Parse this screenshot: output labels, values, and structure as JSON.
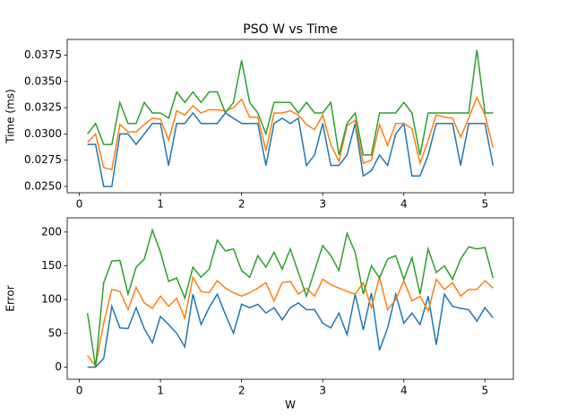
{
  "chart_data": [
    {
      "type": "line",
      "title": "PSO W vs Time",
      "y_label": "Time (ms)",
      "x": [
        0.1,
        0.2,
        0.3,
        0.4,
        0.5,
        0.6,
        0.7,
        0.8,
        0.9,
        1.0,
        1.1,
        1.2,
        1.3,
        1.4,
        1.5,
        1.6,
        1.7,
        1.8,
        1.9,
        2.0,
        2.1,
        2.2,
        2.3,
        2.4,
        2.5,
        2.6,
        2.7,
        2.8,
        2.9,
        3.0,
        3.1,
        3.2,
        3.3,
        3.4,
        3.5,
        3.6,
        3.7,
        3.8,
        3.9,
        4.0,
        4.1,
        4.2,
        4.3,
        4.4,
        4.5,
        4.6,
        4.7,
        4.8,
        4.9,
        5.0,
        5.1
      ],
      "series": [
        {
          "color": "#1f77b4",
          "values": [
            0.029,
            0.029,
            0.025,
            0.025,
            0.03,
            0.03,
            0.029,
            0.03,
            0.031,
            0.031,
            0.027,
            0.031,
            0.031,
            0.032,
            0.031,
            0.031,
            0.031,
            0.032,
            0.0315,
            0.031,
            0.031,
            0.031,
            0.027,
            0.031,
            0.0315,
            0.031,
            0.0315,
            0.027,
            0.028,
            0.031,
            0.027,
            0.027,
            0.028,
            0.031,
            0.026,
            0.0265,
            0.028,
            0.027,
            0.03,
            0.031,
            0.026,
            0.026,
            0.028,
            0.031,
            0.031,
            0.031,
            0.027,
            0.031,
            0.031,
            0.031,
            0.027
          ]
        },
        {
          "color": "#ff7f0e",
          "values": [
            0.0292,
            0.03,
            0.0268,
            0.0266,
            0.0309,
            0.0302,
            0.0302,
            0.0309,
            0.0315,
            0.0314,
            0.0294,
            0.0322,
            0.0318,
            0.0327,
            0.032,
            0.0323,
            0.0323,
            0.0322,
            0.0325,
            0.0333,
            0.0316,
            0.0316,
            0.0284,
            0.032,
            0.032,
            0.0322,
            0.0318,
            0.0309,
            0.0304,
            0.0318,
            0.029,
            0.0274,
            0.0308,
            0.0313,
            0.0272,
            0.0275,
            0.0309,
            0.0289,
            0.031,
            0.031,
            0.0305,
            0.0272,
            0.0294,
            0.0318,
            0.0316,
            0.0315,
            0.0297,
            0.0315,
            0.0335,
            0.0318,
            0.0287
          ]
        },
        {
          "color": "#2ca02c",
          "values": [
            0.03,
            0.031,
            0.029,
            0.029,
            0.033,
            0.031,
            0.031,
            0.033,
            0.032,
            0.032,
            0.0315,
            0.034,
            0.033,
            0.034,
            0.033,
            0.034,
            0.034,
            0.032,
            0.033,
            0.037,
            0.033,
            0.032,
            0.03,
            0.033,
            0.033,
            0.033,
            0.032,
            0.033,
            0.032,
            0.032,
            0.033,
            0.028,
            0.031,
            0.032,
            0.028,
            0.028,
            0.032,
            0.032,
            0.032,
            0.033,
            0.032,
            0.028,
            0.032,
            0.032,
            0.032,
            0.032,
            0.032,
            0.032,
            0.038,
            0.032,
            0.032
          ]
        }
      ],
      "xlim": [
        -0.15,
        5.35
      ],
      "xticks": [
        0,
        1,
        2,
        3,
        4,
        5
      ],
      "ylim": [
        0.0244,
        0.039
      ],
      "yticks": [
        {
          "value": 0.025,
          "label": "0.0250"
        },
        0.0275,
        {
          "value": 0.03,
          "label": "0.0300"
        },
        0.0325,
        {
          "value": 0.035,
          "label": "0.0350"
        },
        0.0375
      ]
    },
    {
      "type": "line",
      "x_label": "W",
      "y_label": "Error",
      "x": [
        0.1,
        0.2,
        0.3,
        0.4,
        0.5,
        0.6,
        0.7,
        0.8,
        0.9,
        1.0,
        1.1,
        1.2,
        1.3,
        1.4,
        1.5,
        1.6,
        1.7,
        1.8,
        1.9,
        2.0,
        2.1,
        2.2,
        2.3,
        2.4,
        2.5,
        2.6,
        2.7,
        2.8,
        2.9,
        3.0,
        3.1,
        3.2,
        3.3,
        3.4,
        3.5,
        3.6,
        3.7,
        3.8,
        3.9,
        4.0,
        4.1,
        4.2,
        4.3,
        4.4,
        4.5,
        4.6,
        4.7,
        4.8,
        4.9,
        5.0,
        5.1
      ],
      "series": [
        {
          "color": "#1f77b4",
          "values": [
            0,
            0,
            13,
            90,
            58,
            57,
            88,
            57,
            36,
            75,
            63,
            50,
            30,
            108,
            63,
            88,
            108,
            78,
            50,
            93,
            88,
            93,
            80,
            88,
            70,
            88,
            95,
            85,
            85,
            65,
            58,
            80,
            48,
            108,
            55,
            110,
            25,
            58,
            108,
            65,
            80,
            63,
            105,
            33,
            108,
            90,
            87,
            85,
            68,
            88,
            73
          ]
        },
        {
          "color": "#ff7f0e",
          "values": [
            17,
            2,
            65,
            115,
            112,
            85,
            118,
            95,
            87,
            105,
            90,
            102,
            72,
            133,
            112,
            110,
            128,
            117,
            110,
            105,
            110,
            117,
            125,
            98,
            125,
            127,
            108,
            117,
            105,
            130,
            122,
            117,
            112,
            108,
            125,
            88,
            133,
            85,
            100,
            128,
            98,
            105,
            83,
            130,
            115,
            125,
            105,
            115,
            115,
            128,
            117
          ]
        },
        {
          "color": "#2ca02c",
          "values": [
            80,
            0,
            125,
            157,
            158,
            108,
            148,
            160,
            203,
            170,
            127,
            132,
            102,
            148,
            133,
            145,
            188,
            172,
            175,
            143,
            133,
            165,
            148,
            170,
            145,
            175,
            140,
            105,
            143,
            180,
            165,
            143,
            198,
            170,
            108,
            150,
            132,
            160,
            165,
            130,
            162,
            108,
            175,
            140,
            150,
            130,
            160,
            178,
            175,
            177,
            132
          ]
        }
      ],
      "xlim": [
        -0.15,
        5.35
      ],
      "xticks": [
        0,
        1,
        2,
        3,
        4,
        5
      ],
      "ylim": [
        -18,
        221
      ],
      "yticks": [
        0,
        50,
        100,
        150,
        200
      ]
    }
  ]
}
